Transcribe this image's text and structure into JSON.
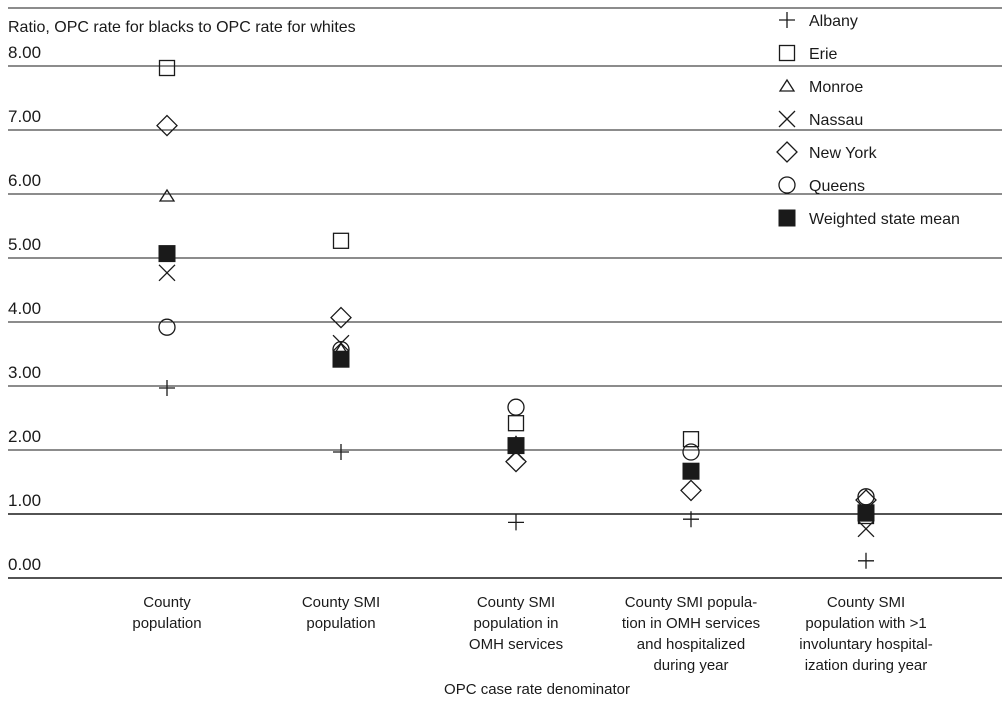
{
  "chart_data": {
    "type": "scatter",
    "ylabel": "Ratio, OPC rate for blacks to OPC rate for whites",
    "xlabel": "OPC case rate denominator",
    "ylim": [
      0,
      8
    ],
    "yticks": [
      "0.00",
      "1.00",
      "2.00",
      "3.00",
      "4.00",
      "5.00",
      "6.00",
      "7.00",
      "8.00"
    ],
    "grid": true,
    "legend_position": "top-right",
    "categories": [
      [
        "County",
        "population"
      ],
      [
        "County SMI",
        "population"
      ],
      [
        "County SMI",
        "population in",
        "OMH services"
      ],
      [
        "County SMI popula-",
        "tion in OMH services",
        "and hospitalized",
        "during year"
      ],
      [
        "County SMI",
        "population with >1",
        "involuntary hospital-",
        "ization during year"
      ]
    ],
    "series": [
      {
        "name": "Albany",
        "marker": "plus",
        "values": [
          3.0,
          2.0,
          0.9,
          0.95,
          0.3
        ]
      },
      {
        "name": "Erie",
        "marker": "square",
        "values": [
          8.0,
          5.3,
          2.45,
          2.2,
          1.0
        ]
      },
      {
        "name": "Monroe",
        "marker": "triangle",
        "values": [
          6.0,
          3.6,
          2.15,
          1.7,
          1.0
        ]
      },
      {
        "name": "Nassau",
        "marker": "x",
        "values": [
          4.8,
          3.7,
          2.0,
          1.7,
          0.8
        ]
      },
      {
        "name": "New York",
        "marker": "diamond",
        "values": [
          7.1,
          4.1,
          1.85,
          1.4,
          1.25
        ]
      },
      {
        "name": "Queens",
        "marker": "circle",
        "values": [
          3.95,
          3.6,
          2.7,
          2.0,
          1.3
        ]
      },
      {
        "name": "Weighted state mean",
        "marker": "filled-square",
        "values": [
          5.1,
          3.45,
          2.1,
          1.7,
          1.05
        ]
      }
    ]
  }
}
